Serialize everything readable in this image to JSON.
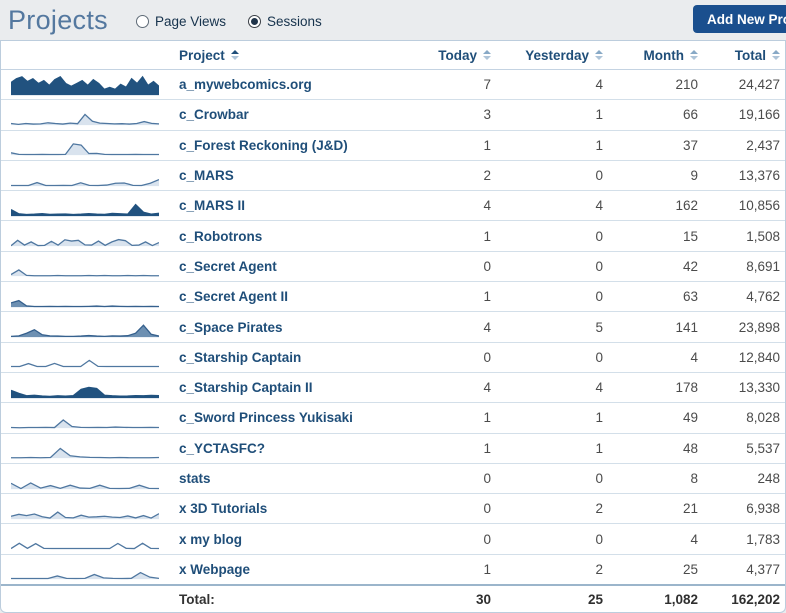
{
  "page": {
    "title": "Projects",
    "view_options": [
      {
        "label": "Page Views",
        "selected": false
      },
      {
        "label": "Sessions",
        "selected": true
      }
    ],
    "add_button_label": "Add New Project"
  },
  "table": {
    "headers": {
      "project": "Project",
      "today": "Today",
      "yesterday": "Yesterday",
      "month": "Month",
      "total": "Total"
    },
    "sorted_column": "project",
    "rows": [
      {
        "project": "a_mywebcomics.org",
        "today": "7",
        "yesterday": "4",
        "month": "210",
        "total": "24,427",
        "spark_style": "dark",
        "spark_values": [
          6.5,
          8.5,
          9.5,
          7,
          8.5,
          6,
          7.5,
          5,
          8,
          9.5,
          6,
          4.5,
          6,
          7.5,
          5,
          8,
          6,
          3,
          4,
          3,
          5.5,
          4,
          8.5,
          6,
          9.5,
          5,
          7,
          4.5
        ]
      },
      {
        "project": "c_Crowbar",
        "today": "3",
        "yesterday": "1",
        "month": "66",
        "total": "19,166",
        "spark_style": "light",
        "spark_values": [
          0.8,
          0.4,
          0.8,
          0.5,
          0.6,
          1.2,
          0.8,
          0.5,
          1.0,
          0.7,
          5.5,
          2.0,
          1.0,
          0.8,
          0.6,
          0.7,
          0.5,
          0.8,
          1.8,
          0.9,
          0.6
        ]
      },
      {
        "project": "c_Forest Reckoning (J&D)",
        "today": "1",
        "yesterday": "1",
        "month": "37",
        "total": "2,437",
        "spark_style": "light",
        "spark_values": [
          1.2,
          0.4,
          0.3,
          0.3,
          0.4,
          0.3,
          0.3,
          0.4,
          5.8,
          5.2,
          0.8,
          0.9,
          0.4,
          0.3,
          0.3,
          0.3,
          0.4,
          0.3,
          0.3,
          0.3
        ]
      },
      {
        "project": "c_MARS",
        "today": "2",
        "yesterday": "0",
        "month": "9",
        "total": "13,376",
        "spark_style": "light",
        "spark_values": [
          0.3,
          0.3,
          0.3,
          1.8,
          0.3,
          0.3,
          0.4,
          0.3,
          1.7,
          0.4,
          0.3,
          0.5,
          1.5,
          1.6,
          0.4,
          0.3,
          1.5,
          3.4
        ]
      },
      {
        "project": "c_MARS II",
        "today": "4",
        "yesterday": "4",
        "month": "162",
        "total": "10,856",
        "spark_style": "dark",
        "spark_values": [
          3.4,
          1.2,
          0.8,
          1.0,
          1.3,
          0.9,
          1.0,
          1.1,
          0.8,
          1.0,
          1.3,
          1.0,
          0.9,
          1.4,
          1.2,
          1.0,
          6.0,
          2.0,
          1.0,
          1.5
        ]
      },
      {
        "project": "c_Robotrons",
        "today": "1",
        "yesterday": "0",
        "month": "15",
        "total": "1,508",
        "spark_style": "light",
        "spark_values": [
          0.2,
          3.0,
          0.5,
          2.2,
          0.3,
          0.4,
          2.5,
          0.5,
          3.3,
          2.6,
          3.0,
          0.6,
          0.5,
          2.6,
          0.4,
          2.2,
          3.4,
          2.8,
          0.4,
          0.5,
          2.2,
          0.3,
          1.8
        ]
      },
      {
        "project": "c_Secret Agent",
        "today": "0",
        "yesterday": "0",
        "month": "42",
        "total": "8,691",
        "spark_style": "light",
        "spark_values": [
          0.8,
          3.2,
          0.4,
          0.2,
          0.2,
          0.2,
          0.3,
          0.2,
          0.2,
          0.2,
          0.3,
          0.2,
          0.3,
          0.2,
          0.2,
          0.3,
          0.2,
          0.3,
          0.2,
          0.2
        ]
      },
      {
        "project": "c_Secret Agent II",
        "today": "1",
        "yesterday": "0",
        "month": "63",
        "total": "4,762",
        "spark_style": "mid",
        "spark_values": [
          2.2,
          3.4,
          0.6,
          0.3,
          0.3,
          0.4,
          0.3,
          0.4,
          0.3,
          0.3,
          0.4,
          0.5,
          0.3,
          0.5,
          0.4,
          0.3,
          0.4,
          0.3,
          0.4,
          0.3
        ]
      },
      {
        "project": "c_Space Pirates",
        "today": "4",
        "yesterday": "5",
        "month": "141",
        "total": "23,898",
        "spark_style": "mid",
        "spark_values": [
          0.4,
          0.6,
          2.0,
          3.8,
          1.2,
          0.6,
          0.5,
          0.4,
          0.4,
          0.5,
          0.8,
          0.5,
          0.4,
          0.6,
          0.5,
          0.7,
          2.0,
          6.2,
          1.5,
          0.5
        ]
      },
      {
        "project": "c_Starship Captain",
        "today": "0",
        "yesterday": "0",
        "month": "4",
        "total": "12,840",
        "spark_style": "none",
        "spark_values": [
          0.3,
          0.3,
          1.8,
          0.3,
          0.3,
          1.9,
          0.3,
          0.3,
          0.3,
          3.5,
          0.4,
          0.3,
          0.3,
          0.3,
          0.3,
          0.3,
          0.3,
          0.3
        ]
      },
      {
        "project": "c_Starship Captain II",
        "today": "4",
        "yesterday": "4",
        "month": "178",
        "total": "13,330",
        "spark_style": "dark",
        "spark_values": [
          4.0,
          2.5,
          1.2,
          1.5,
          1.1,
          0.9,
          1.2,
          1.0,
          1.3,
          4.5,
          5.5,
          5.0,
          1.5,
          1.2,
          1.0,
          1.1,
          1.3,
          1.2,
          1.4,
          1.3
        ]
      },
      {
        "project": "c_Sword Princess Yukisaki",
        "today": "1",
        "yesterday": "1",
        "month": "49",
        "total": "8,028",
        "spark_style": "light",
        "spark_values": [
          0.3,
          0.2,
          0.3,
          0.3,
          0.4,
          0.3,
          4.2,
          0.8,
          0.4,
          0.3,
          0.4,
          0.3,
          0.5,
          0.4,
          0.3,
          0.3,
          0.4,
          0.3
        ]
      },
      {
        "project": "c_YCTASFC?",
        "today": "1",
        "yesterday": "1",
        "month": "48",
        "total": "5,537",
        "spark_style": "light",
        "spark_values": [
          0.2,
          0.2,
          0.3,
          0.2,
          0.3,
          5.0,
          1.2,
          0.6,
          0.4,
          0.3,
          0.2,
          0.3,
          0.2,
          0.2,
          0.2,
          0.3
        ]
      },
      {
        "project": "stats",
        "today": "0",
        "yesterday": "0",
        "month": "8",
        "total": "248",
        "spark_style": "light",
        "spark_values": [
          3.0,
          0.3,
          3.2,
          0.5,
          1.8,
          0.4,
          2.0,
          0.5,
          0.4,
          2.0,
          0.4,
          0.3,
          0.4,
          2.0,
          0.4,
          0.3
        ]
      },
      {
        "project": "x 3D Tutorials",
        "today": "0",
        "yesterday": "2",
        "month": "21",
        "total": "6,938",
        "spark_style": "light",
        "spark_values": [
          1.5,
          2.5,
          1.8,
          2.6,
          1.2,
          0.5,
          3.6,
          0.8,
          0.6,
          2.0,
          1.0,
          1.2,
          1.5,
          1.0,
          0.8,
          1.6,
          0.6,
          1.8,
          0.5,
          2.8
        ]
      },
      {
        "project": "x my blog",
        "today": "0",
        "yesterday": "0",
        "month": "4",
        "total": "1,783",
        "spark_style": "none",
        "spark_values": [
          0.3,
          3.0,
          0.4,
          2.8,
          0.4,
          0.3,
          0.3,
          0.3,
          0.3,
          0.3,
          0.3,
          0.3,
          0.3,
          2.9,
          0.4,
          0.3,
          3.0,
          0.4,
          0.3
        ]
      },
      {
        "project": "x Webpage",
        "today": "1",
        "yesterday": "2",
        "month": "25",
        "total": "4,377",
        "spark_style": "light",
        "spark_values": [
          0.3,
          0.3,
          0.3,
          0.3,
          0.3,
          1.6,
          0.4,
          0.3,
          0.4,
          2.4,
          0.6,
          0.4,
          0.3,
          0.4,
          3.4,
          1.0,
          0.4
        ]
      }
    ],
    "totals": {
      "label": "Total:",
      "today": "30",
      "yesterday": "25",
      "month": "1,082",
      "total": "162,202"
    }
  },
  "colors": {
    "accent_navy": "#1f4e79",
    "title_blue": "#54789f",
    "button_bg": "#1a4f8e",
    "row_border": "#d3dfe9",
    "number_gray": "#4b4b4b"
  },
  "sparkline_styles": {
    "dark": {
      "fill": "#21527f",
      "stroke": "#21527f"
    },
    "light": {
      "fill": "#d9e3ee",
      "stroke": "#4f77a0"
    },
    "mid": {
      "fill": "#6d90b2",
      "stroke": "#35608d"
    },
    "none": {
      "fill": "none",
      "stroke": "#4f77a0"
    }
  }
}
